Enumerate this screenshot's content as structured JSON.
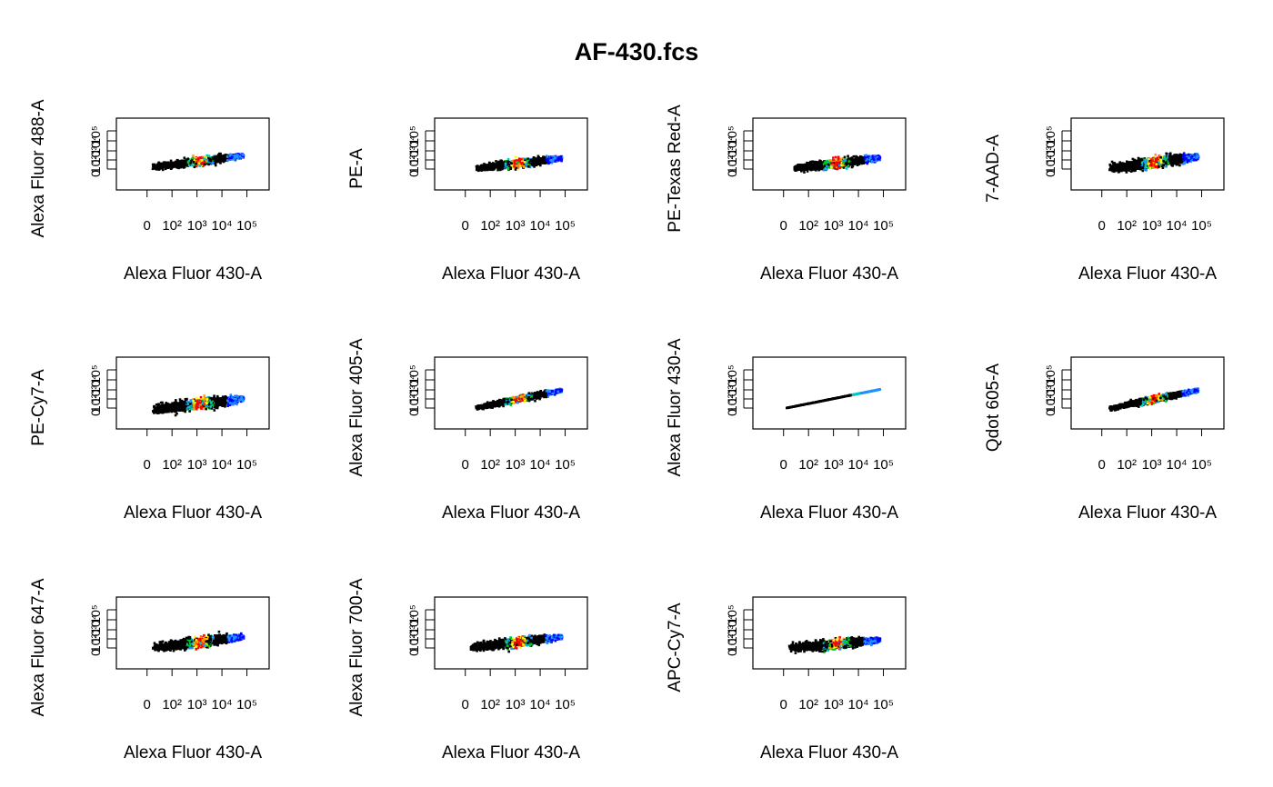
{
  "figure": {
    "title": "AF-430.fcs"
  },
  "colors": {
    "density_ramp": [
      "#000000",
      "#0000ff",
      "#1e90ff",
      "#00c8c8",
      "#00cc00",
      "#ffff00",
      "#ff9900",
      "#ff0000"
    ]
  },
  "chart_data": [
    {
      "type": "scatter",
      "style": "density",
      "xlabel": "Alexa Fluor 430-A",
      "ylabel": "Alexa Fluor 488-A",
      "x_scale": "log",
      "y_scale": "log",
      "x_tick_labels": [
        "0",
        "10²",
        "10³",
        "10⁴",
        "10⁵"
      ],
      "y_tick_labels": [
        "0",
        "10²",
        "10³",
        "10⁴",
        "10⁵"
      ],
      "shape": "cloud",
      "x_range": [
        25,
        110000
      ],
      "trend_y": [
        25,
        9000
      ],
      "spread": 0.26,
      "skew": 0.3,
      "peak_x": 2000
    },
    {
      "type": "scatter",
      "style": "density",
      "xlabel": "Alexa Fluor 430-A",
      "ylabel": "PE-A",
      "x_scale": "log",
      "y_scale": "log",
      "x_tick_labels": [
        "0",
        "10²",
        "10³",
        "10⁴",
        "10⁵"
      ],
      "y_tick_labels": [
        "0",
        "10²",
        "10³",
        "10⁴",
        "10⁵"
      ],
      "shape": "cloud",
      "x_range": [
        40,
        110000
      ],
      "trend_y": [
        15,
        3000
      ],
      "spread": 0.26,
      "skew": 0.25,
      "peak_x": 2000
    },
    {
      "type": "scatter",
      "style": "density",
      "xlabel": "Alexa Fluor 430-A",
      "ylabel": "PE-Texas Red-A",
      "x_scale": "log",
      "y_scale": "log",
      "x_tick_labels": [
        "0",
        "10²",
        "10³",
        "10⁴",
        "10⁵"
      ],
      "y_tick_labels": [
        "0",
        "10²",
        "10³",
        "10⁴",
        "10⁵"
      ],
      "shape": "cloud",
      "x_range": [
        40,
        110000
      ],
      "trend_y": [
        15,
        3000
      ],
      "spread": 0.28,
      "skew": 0.3,
      "peak_x": 2000
    },
    {
      "type": "scatter",
      "style": "density",
      "xlabel": "Alexa Fluor 430-A",
      "ylabel": "7-AAD-A",
      "x_scale": "log",
      "y_scale": "log",
      "x_tick_labels": [
        "0",
        "10²",
        "10³",
        "10⁴",
        "10⁵"
      ],
      "y_tick_labels": [
        "0",
        "10²",
        "10³",
        "10⁴",
        "10⁵"
      ],
      "shape": "cloud",
      "x_range": [
        30,
        110000
      ],
      "trend_y": [
        10,
        6000
      ],
      "spread": 0.36,
      "skew": 0.5,
      "peak_x": 2000
    },
    {
      "type": "scatter",
      "style": "density",
      "xlabel": "Alexa Fluor 430-A",
      "ylabel": "PE-Cy7-A",
      "x_scale": "log",
      "y_scale": "log",
      "x_tick_labels": [
        "0",
        "10²",
        "10³",
        "10⁴",
        "10⁵"
      ],
      "y_tick_labels": [
        "0",
        "10²",
        "10³",
        "10⁴",
        "10⁵"
      ],
      "shape": "cloud",
      "x_range": [
        25,
        110000
      ],
      "trend_y": [
        3,
        1500
      ],
      "spread": 0.34,
      "skew": 0.55,
      "peak_x": 2000
    },
    {
      "type": "scatter",
      "style": "density",
      "xlabel": "Alexa Fluor 430-A",
      "ylabel": "Alexa Fluor 405-A",
      "x_scale": "log",
      "y_scale": "log",
      "x_tick_labels": [
        "0",
        "10²",
        "10³",
        "10⁴",
        "10⁵"
      ],
      "y_tick_labels": [
        "0",
        "10²",
        "10³",
        "10⁴",
        "10⁵"
      ],
      "shape": "diagonal",
      "x_range": [
        40,
        110000
      ],
      "trend_y": [
        25,
        70000
      ],
      "spread": 0.22,
      "skew": -0.1,
      "peak_x": 2000
    },
    {
      "type": "scatter",
      "style": "density",
      "xlabel": "Alexa Fluor 430-A",
      "ylabel": "Alexa Fluor 430-A",
      "x_scale": "log",
      "y_scale": "log",
      "x_tick_labels": [
        "0",
        "10²",
        "10³",
        "10⁴",
        "10⁵"
      ],
      "y_tick_labels": [
        "0",
        "10²",
        "10³",
        "10⁴",
        "10⁵"
      ],
      "shape": "identity",
      "x_range": [
        20,
        110000
      ],
      "trend_y": [
        20,
        110000
      ],
      "spread": 0.0,
      "skew": 0,
      "peak_x": 10000
    },
    {
      "type": "scatter",
      "style": "density",
      "xlabel": "Alexa Fluor 430-A",
      "ylabel": "Qdot 605-A",
      "x_scale": "log",
      "y_scale": "log",
      "x_tick_labels": [
        "0",
        "10²",
        "10³",
        "10⁴",
        "10⁵"
      ],
      "y_tick_labels": [
        "0",
        "10²",
        "10³",
        "10⁴",
        "10⁵"
      ],
      "shape": "diagonal",
      "x_range": [
        30,
        110000
      ],
      "trend_y": [
        20,
        70000
      ],
      "spread": 0.22,
      "skew": -0.15,
      "peak_x": 2000
    },
    {
      "type": "scatter",
      "style": "density",
      "xlabel": "Alexa Fluor 430-A",
      "ylabel": "Alexa Fluor 647-A",
      "x_scale": "log",
      "y_scale": "log",
      "x_tick_labels": [
        "0",
        "10²",
        "10³",
        "10⁴",
        "10⁵"
      ],
      "y_tick_labels": [
        "0",
        "10²",
        "10³",
        "10⁴",
        "10⁵"
      ],
      "shape": "cloud",
      "x_range": [
        25,
        110000
      ],
      "trend_y": [
        10,
        3000
      ],
      "spread": 0.32,
      "skew": 0.45,
      "peak_x": 2000
    },
    {
      "type": "scatter",
      "style": "density",
      "xlabel": "Alexa Fluor 430-A",
      "ylabel": "Alexa Fluor 700-A",
      "x_scale": "log",
      "y_scale": "log",
      "x_tick_labels": [
        "0",
        "10²",
        "10³",
        "10⁴",
        "10⁵"
      ],
      "y_tick_labels": [
        "0",
        "10²",
        "10³",
        "10⁴",
        "10⁵"
      ],
      "shape": "cloud",
      "x_range": [
        25,
        110000
      ],
      "trend_y": [
        8,
        3000
      ],
      "spread": 0.3,
      "skew": 0.45,
      "peak_x": 2000
    },
    {
      "type": "scatter",
      "style": "density",
      "xlabel": "Alexa Fluor 430-A",
      "ylabel": "APC-Cy7-A",
      "x_scale": "log",
      "y_scale": "log",
      "x_tick_labels": [
        "0",
        "10²",
        "10³",
        "10⁴",
        "10⁵"
      ],
      "y_tick_labels": [
        "0",
        "10²",
        "10³",
        "10⁴",
        "10⁵"
      ],
      "shape": "cloud",
      "x_range": [
        25,
        110000
      ],
      "trend_y": [
        6,
        800
      ],
      "spread": 0.3,
      "skew": 0.5,
      "peak_x": 2000
    }
  ]
}
